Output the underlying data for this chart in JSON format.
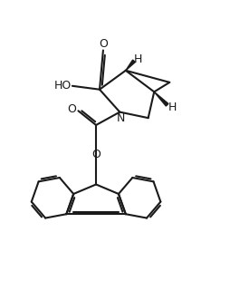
{
  "bg": "#ffffff",
  "lc": "#1a1a1a",
  "lw": 1.5,
  "fs": 9.0,
  "figsize": [
    2.75,
    3.31
  ],
  "dpi": 100,
  "xlim": [
    -1.0,
    9.5
  ],
  "ylim": [
    0.0,
    12.0
  ]
}
